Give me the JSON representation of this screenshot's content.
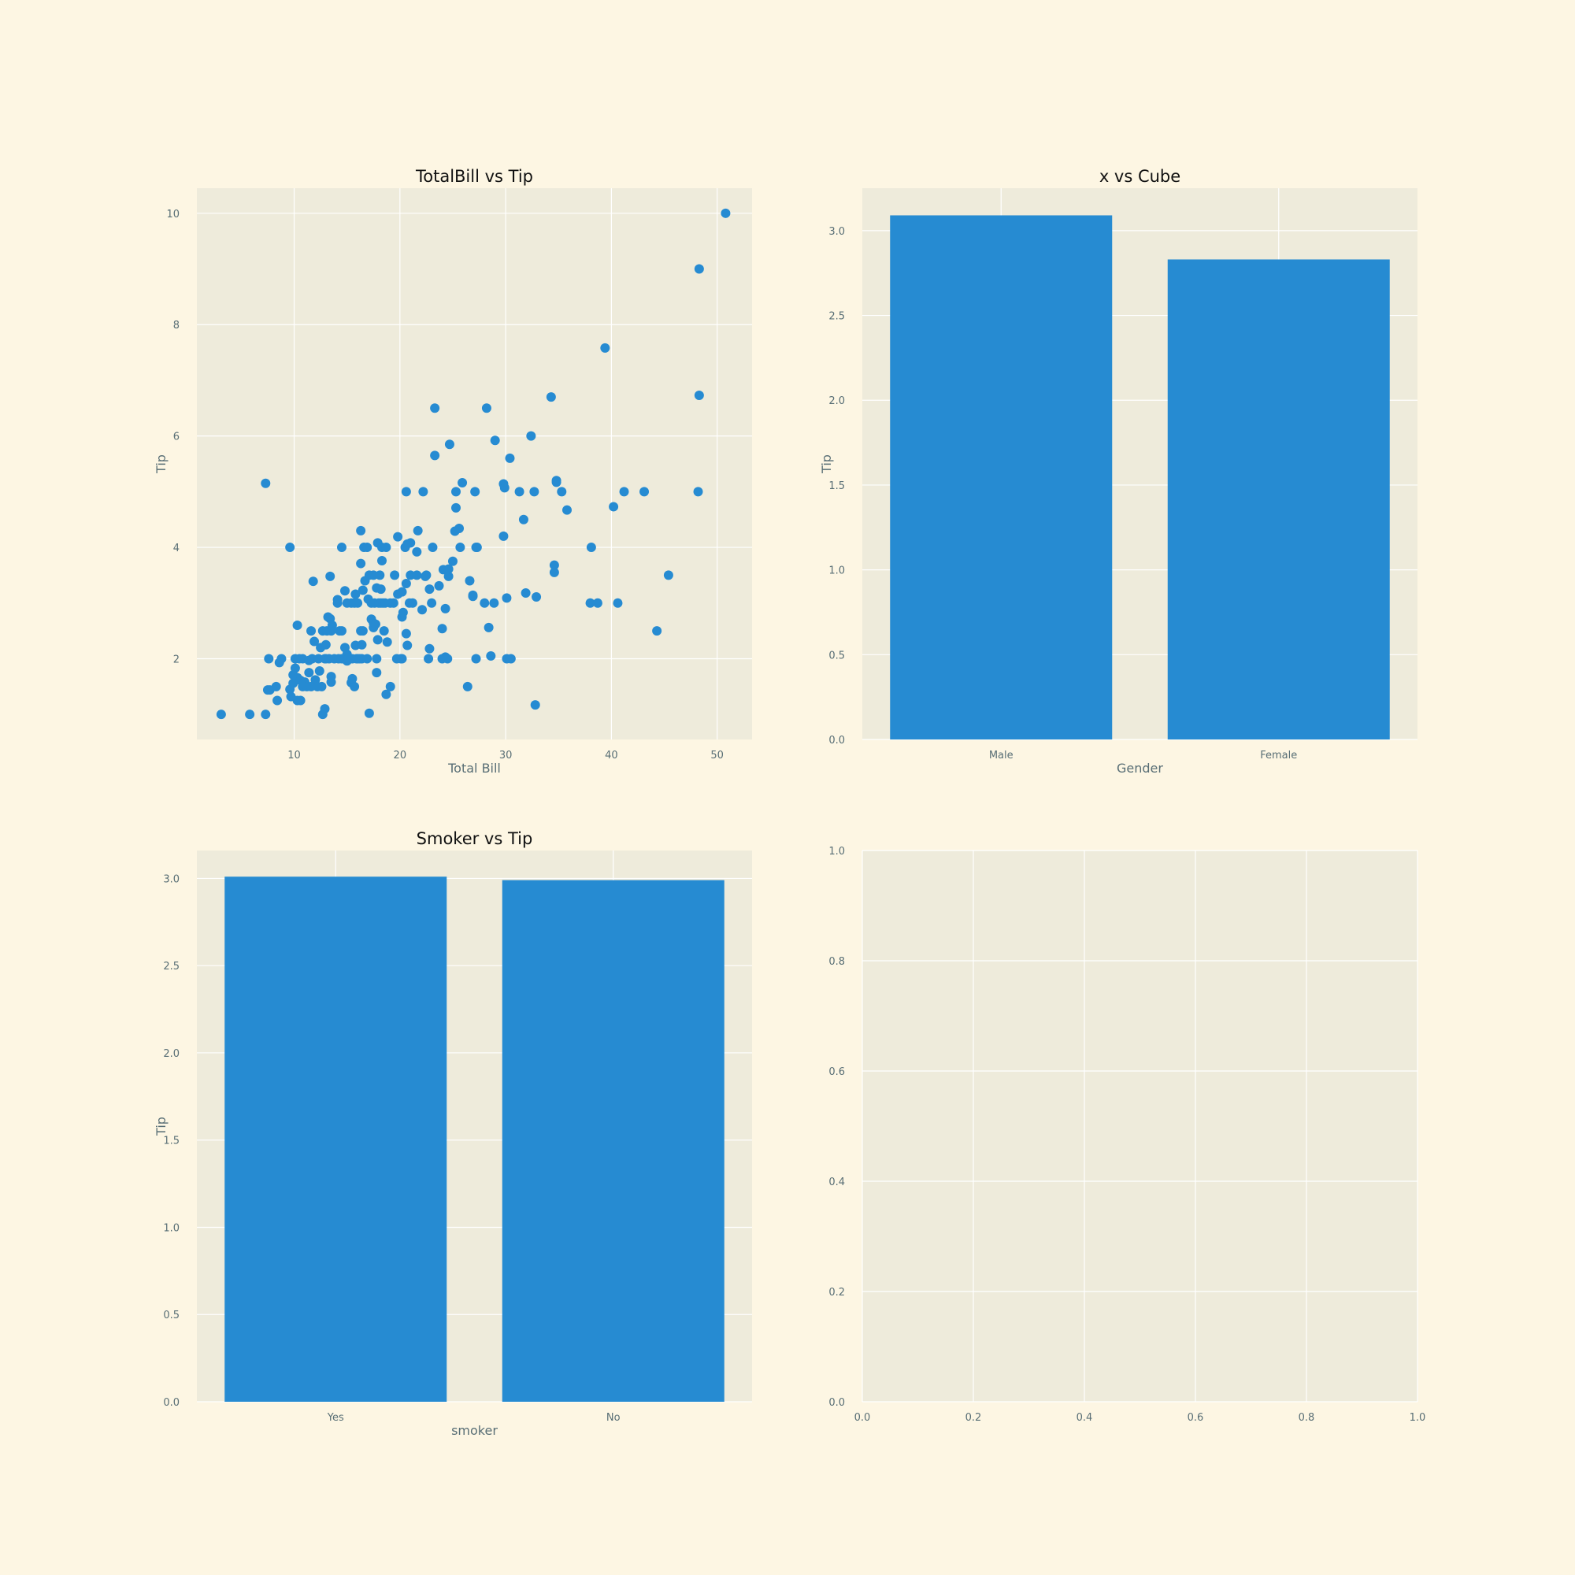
{
  "colors": {
    "figure_bg": "#fdf6e3",
    "axes_bg": "#eeebdb",
    "grid": "#ffffff",
    "mark": "#268bd2",
    "tick_text": "#586e75",
    "title_text": "#111111"
  },
  "chart_data": [
    {
      "type": "scatter",
      "title": "TotalBill vs Tip",
      "xlabel": "Total Bill",
      "ylabel": "Tip",
      "xlim": [
        0.8,
        53.3
      ],
      "ylim": [
        0.55,
        10.45
      ],
      "xticks": [
        10,
        20,
        30,
        40,
        50
      ],
      "yticks": [
        2,
        4,
        6,
        8,
        10
      ],
      "grid": true,
      "points": [
        [
          3.1,
          1.0
        ],
        [
          5.8,
          1.0
        ],
        [
          7.3,
          1.0
        ],
        [
          7.3,
          5.15
        ],
        [
          7.5,
          1.44
        ],
        [
          7.7,
          1.44
        ],
        [
          7.6,
          2.0
        ],
        [
          8.4,
          1.25
        ],
        [
          8.3,
          1.5
        ],
        [
          8.6,
          1.93
        ],
        [
          8.8,
          2.0
        ],
        [
          9.6,
          1.45
        ],
        [
          9.6,
          4.0
        ],
        [
          9.7,
          1.32
        ],
        [
          9.9,
          1.56
        ],
        [
          9.9,
          1.71
        ],
        [
          10.1,
          1.83
        ],
        [
          10.1,
          2.0
        ],
        [
          10.3,
          1.25
        ],
        [
          10.3,
          1.66
        ],
        [
          10.3,
          2.6
        ],
        [
          10.5,
          2.0
        ],
        [
          10.6,
          1.25
        ],
        [
          10.6,
          1.61
        ],
        [
          10.8,
          1.5
        ],
        [
          10.8,
          2.0
        ],
        [
          11.0,
          1.58
        ],
        [
          11.2,
          1.5
        ],
        [
          11.4,
          1.97
        ],
        [
          11.4,
          1.75
        ],
        [
          11.6,
          2.5
        ],
        [
          11.6,
          1.5
        ],
        [
          11.7,
          2.0
        ],
        [
          11.8,
          3.39
        ],
        [
          11.9,
          2.31
        ],
        [
          12.0,
          1.62
        ],
        [
          12.2,
          1.5
        ],
        [
          12.3,
          2.0
        ],
        [
          12.4,
          1.78
        ],
        [
          12.5,
          2.2
        ],
        [
          12.6,
          1.5
        ],
        [
          12.7,
          1.0
        ],
        [
          12.7,
          2.5
        ],
        [
          12.9,
          1.1
        ],
        [
          12.9,
          2.0
        ],
        [
          13.0,
          2.0
        ],
        [
          13.0,
          2.25
        ],
        [
          13.1,
          2.5
        ],
        [
          13.2,
          2.75
        ],
        [
          13.3,
          2.0
        ],
        [
          13.4,
          2.72
        ],
        [
          13.4,
          3.48
        ],
        [
          13.5,
          1.58
        ],
        [
          13.5,
          1.68
        ],
        [
          13.5,
          2.5
        ],
        [
          13.6,
          2.6
        ],
        [
          13.8,
          2.0
        ],
        [
          14.1,
          3.0
        ],
        [
          14.1,
          3.06
        ],
        [
          14.2,
          2.0
        ],
        [
          14.3,
          2.5
        ],
        [
          14.5,
          2.0
        ],
        [
          14.5,
          4.0
        ],
        [
          14.5,
          2.5
        ],
        [
          14.7,
          2.0
        ],
        [
          14.8,
          2.2
        ],
        [
          14.8,
          3.22
        ],
        [
          15.0,
          1.96
        ],
        [
          15.0,
          3.0
        ],
        [
          15.0,
          2.08
        ],
        [
          15.1,
          2.0
        ],
        [
          15.4,
          1.57
        ],
        [
          15.4,
          3.0
        ],
        [
          15.5,
          1.64
        ],
        [
          15.5,
          2.0
        ],
        [
          15.7,
          1.5
        ],
        [
          15.7,
          3.0
        ],
        [
          15.8,
          2.24
        ],
        [
          15.8,
          3.16
        ],
        [
          15.9,
          2.0
        ],
        [
          16.0,
          3.0
        ],
        [
          16.0,
          2.0
        ],
        [
          16.2,
          2.0
        ],
        [
          16.3,
          2.5
        ],
        [
          16.3,
          3.71
        ],
        [
          16.3,
          4.3
        ],
        [
          16.4,
          2.25
        ],
        [
          16.4,
          2.0
        ],
        [
          16.5,
          3.23
        ],
        [
          16.5,
          2.5
        ],
        [
          16.6,
          4.0
        ],
        [
          16.7,
          3.4
        ],
        [
          16.9,
          2.0
        ],
        [
          16.9,
          4.0
        ],
        [
          17.0,
          3.07
        ],
        [
          17.1,
          1.02
        ],
        [
          17.1,
          3.5
        ],
        [
          17.3,
          3.0
        ],
        [
          17.3,
          2.71
        ],
        [
          17.5,
          3.5
        ],
        [
          17.5,
          2.64
        ],
        [
          17.5,
          2.56
        ],
        [
          17.6,
          3.0
        ],
        [
          17.7,
          2.62
        ],
        [
          17.8,
          3.27
        ],
        [
          17.8,
          1.75
        ],
        [
          17.8,
          2.0
        ],
        [
          17.9,
          2.34
        ],
        [
          17.9,
          4.08
        ],
        [
          18.0,
          3.0
        ],
        [
          18.1,
          3.5
        ],
        [
          18.2,
          3.25
        ],
        [
          18.2,
          3.0
        ],
        [
          18.3,
          3.76
        ],
        [
          18.3,
          4.0
        ],
        [
          18.4,
          3.0
        ],
        [
          18.5,
          2.5
        ],
        [
          18.6,
          3.0
        ],
        [
          18.7,
          4.0
        ],
        [
          18.7,
          1.36
        ],
        [
          18.8,
          2.3
        ],
        [
          19.1,
          3.0
        ],
        [
          19.1,
          1.5
        ],
        [
          19.4,
          3.0
        ],
        [
          19.5,
          3.5
        ],
        [
          19.7,
          2.0
        ],
        [
          19.8,
          4.19
        ],
        [
          19.8,
          3.16
        ],
        [
          20.1,
          2.0
        ],
        [
          20.2,
          2.75
        ],
        [
          20.2,
          3.2
        ],
        [
          20.2,
          2.0
        ],
        [
          20.3,
          2.83
        ],
        [
          20.5,
          4.0
        ],
        [
          20.6,
          3.35
        ],
        [
          20.6,
          5.0
        ],
        [
          20.6,
          2.45
        ],
        [
          20.7,
          2.24
        ],
        [
          20.7,
          4.06
        ],
        [
          20.9,
          3.0
        ],
        [
          21.0,
          3.5
        ],
        [
          21.0,
          4.08
        ],
        [
          21.2,
          3.0
        ],
        [
          21.6,
          3.5
        ],
        [
          21.6,
          3.92
        ],
        [
          21.7,
          4.3
        ],
        [
          22.1,
          2.88
        ],
        [
          22.2,
          5.0
        ],
        [
          22.4,
          3.48
        ],
        [
          22.5,
          3.5
        ],
        [
          22.7,
          2.0
        ],
        [
          22.8,
          2.18
        ],
        [
          22.8,
          3.25
        ],
        [
          23.0,
          3.0
        ],
        [
          23.1,
          4.0
        ],
        [
          23.3,
          5.65
        ],
        [
          23.3,
          6.5
        ],
        [
          23.7,
          3.31
        ],
        [
          24.0,
          2.54
        ],
        [
          24.0,
          2.0
        ],
        [
          24.1,
          3.6
        ],
        [
          24.3,
          2.03
        ],
        [
          24.3,
          2.9
        ],
        [
          24.5,
          2.0
        ],
        [
          24.6,
          3.48
        ],
        [
          24.6,
          3.61
        ],
        [
          24.7,
          5.85
        ],
        [
          25.0,
          3.75
        ],
        [
          25.2,
          4.29
        ],
        [
          25.3,
          4.71
        ],
        [
          25.3,
          5.0
        ],
        [
          25.6,
          4.34
        ],
        [
          25.7,
          4.0
        ],
        [
          25.9,
          5.16
        ],
        [
          26.4,
          1.5
        ],
        [
          26.6,
          3.4
        ],
        [
          26.9,
          3.12
        ],
        [
          26.9,
          3.14
        ],
        [
          27.1,
          5.0
        ],
        [
          27.2,
          2.0
        ],
        [
          27.2,
          4.0
        ],
        [
          27.3,
          4.0
        ],
        [
          28.0,
          3.0
        ],
        [
          28.2,
          6.5
        ],
        [
          28.4,
          2.56
        ],
        [
          28.6,
          2.05
        ],
        [
          28.9,
          3.0
        ],
        [
          29.0,
          5.92
        ],
        [
          29.8,
          4.2
        ],
        [
          29.8,
          5.14
        ],
        [
          29.9,
          5.07
        ],
        [
          30.1,
          2.0
        ],
        [
          30.1,
          3.09
        ],
        [
          30.4,
          5.6
        ],
        [
          30.5,
          2.0
        ],
        [
          31.3,
          5.0
        ],
        [
          31.7,
          4.5
        ],
        [
          31.9,
          3.18
        ],
        [
          32.4,
          6.0
        ],
        [
          32.7,
          5.0
        ],
        [
          32.8,
          1.17
        ],
        [
          32.9,
          3.11
        ],
        [
          34.3,
          6.7
        ],
        [
          34.6,
          3.55
        ],
        [
          34.6,
          3.68
        ],
        [
          34.8,
          5.2
        ],
        [
          34.8,
          5.17
        ],
        [
          35.3,
          5.0
        ],
        [
          35.8,
          4.67
        ],
        [
          38.0,
          3.0
        ],
        [
          38.1,
          4.0
        ],
        [
          38.7,
          3.0
        ],
        [
          39.4,
          7.58
        ],
        [
          40.2,
          4.73
        ],
        [
          40.6,
          3.0
        ],
        [
          41.2,
          5.0
        ],
        [
          43.1,
          5.0
        ],
        [
          44.3,
          2.5
        ],
        [
          45.4,
          3.5
        ],
        [
          48.2,
          5.0
        ],
        [
          48.3,
          6.73
        ],
        [
          48.3,
          9.0
        ],
        [
          50.8,
          10.0
        ]
      ]
    },
    {
      "type": "bar",
      "title": "x vs Cube",
      "xlabel": "Gender",
      "ylabel": "Tip",
      "categories": [
        "Male",
        "Female"
      ],
      "values": [
        3.09,
        2.83
      ],
      "ylim": [
        0,
        3.25
      ],
      "yticks": [
        "0.0",
        "0.5",
        "1.0",
        "1.5",
        "2.0",
        "2.5",
        "3.0"
      ],
      "grid": true
    },
    {
      "type": "bar",
      "title": "Smoker vs Tip",
      "xlabel": "smoker",
      "ylabel": "Tip",
      "categories": [
        "Yes",
        "No"
      ],
      "values": [
        3.01,
        2.99
      ],
      "ylim": [
        0,
        3.16
      ],
      "yticks": [
        "0.0",
        "0.5",
        "1.0",
        "1.5",
        "2.0",
        "2.5",
        "3.0"
      ],
      "grid": true
    },
    {
      "type": "scatter",
      "title": "",
      "xlabel": "",
      "ylabel": "",
      "xlim": [
        0,
        1
      ],
      "ylim": [
        0,
        1
      ],
      "xticks": [
        "0.0",
        "0.2",
        "0.4",
        "0.6",
        "0.8",
        "1.0"
      ],
      "yticks": [
        "0.0",
        "0.2",
        "0.4",
        "0.6",
        "0.8",
        "1.0"
      ],
      "grid": true,
      "points": []
    }
  ]
}
